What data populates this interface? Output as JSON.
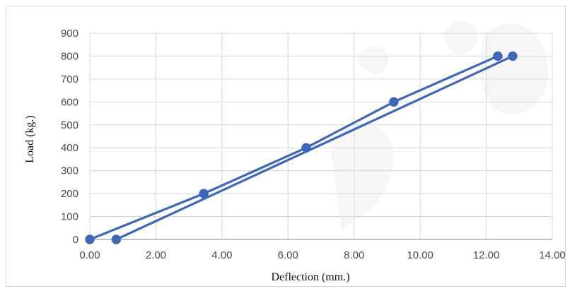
{
  "chart_data": {
    "type": "line",
    "title": "",
    "xlabel": "Deflection (mm.)",
    "ylabel": "Load (kg.)",
    "xlim": [
      0,
      14
    ],
    "ylim": [
      0,
      900
    ],
    "x_ticks": [
      "0.00",
      "2.00",
      "4.00",
      "6.00",
      "8.00",
      "10.00",
      "12.00",
      "14.00"
    ],
    "y_ticks": [
      "0",
      "100",
      "200",
      "300",
      "400",
      "500",
      "600",
      "700",
      "800",
      "900"
    ],
    "grid": true,
    "legend": "none",
    "series": [
      {
        "name": "",
        "color": "#3f67b8",
        "points": [
          {
            "x": 0.0,
            "y": 0
          },
          {
            "x": 3.45,
            "y": 200
          },
          {
            "x": 6.55,
            "y": 400
          },
          {
            "x": 9.2,
            "y": 600
          },
          {
            "x": 12.35,
            "y": 800
          }
        ]
      },
      {
        "name": "",
        "color": "#3f67b8",
        "points": [
          {
            "x": 12.8,
            "y": 800
          },
          {
            "x": 0.8,
            "y": 0
          }
        ]
      }
    ]
  }
}
